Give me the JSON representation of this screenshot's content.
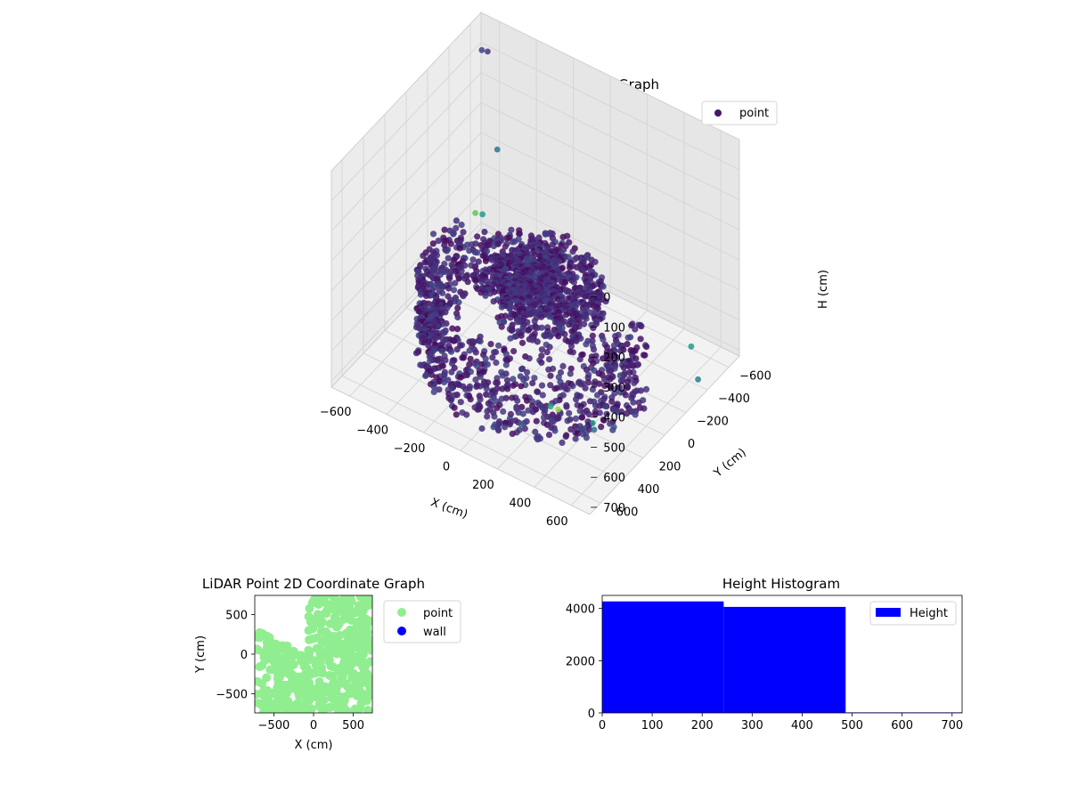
{
  "chart_data": [
    {
      "type": "scatter",
      "projection": "3d",
      "title": "LiDAR Point 3D Coordinate Graph",
      "xlabel": "X (cm)",
      "ylabel": "Y (cm)",
      "zlabel": "H (cm)",
      "xlim": [
        -700,
        700
      ],
      "ylim": [
        -700,
        700
      ],
      "zlim": [
        0,
        720
      ],
      "z_inverted": true,
      "xticks": [
        "−600",
        "−400",
        "−200",
        "0",
        "200",
        "400",
        "600"
      ],
      "yticks": [
        "−600",
        "−400",
        "−200",
        "0",
        "200",
        "400",
        "600"
      ],
      "zticks": [
        "0",
        "100",
        "200",
        "300",
        "400",
        "500",
        "600",
        "700"
      ],
      "grid": true,
      "colormap": "viridis",
      "color_by": "H (cm)",
      "legend_position": "top-right",
      "legend": [
        {
          "name": "point",
          "color": "#46176d"
        }
      ],
      "series": [
        {
          "name": "point",
          "groups": [
            {
              "shape": "arc",
              "r_range": [
                430,
                560
              ],
              "angle_range_deg": [
                -10,
                200
              ],
              "h_range": [
                430,
                700
              ],
              "note_value_h": 520
            },
            {
              "shape": "blob",
              "center": [
                200,
                200
              ],
              "r_range": [
                0,
                260
              ],
              "angle_range_deg": [
                0,
                360
              ],
              "h_range": [
                250,
                420
              ]
            },
            {
              "shape": "fan",
              "r_range": [
                150,
                450
              ],
              "angle_range_deg": [
                190,
                260
              ],
              "h_range": [
                450,
                620
              ]
            }
          ],
          "outliers": [
            {
              "x": -650,
              "y": -620,
              "h": 80
            },
            {
              "x": -560,
              "y": -610,
              "h": 380
            },
            {
              "x": -560,
              "y": -520,
              "h": 20
            },
            {
              "x": -650,
              "y": -560,
              "h": 600
            },
            {
              "x": -640,
              "y": -610,
              "h": 620
            },
            {
              "x": 560,
              "y": 430,
              "h": 560
            },
            {
              "x": 620,
              "y": 520,
              "h": 530
            },
            {
              "x": 430,
              "y": 600,
              "h": 480
            },
            {
              "x": 600,
              "y": 300,
              "h": 610
            },
            {
              "x": 650,
              "y": -400,
              "h": 700
            },
            {
              "x": 500,
              "y": 650,
              "h": 450
            },
            {
              "x": 300,
              "y": 650,
              "h": 560
            },
            {
              "x": 520,
              "y": -560,
              "h": 690
            }
          ]
        }
      ]
    },
    {
      "type": "scatter",
      "title": "LiDAR Point 2D Coordinate Graph",
      "xlabel": "X (cm)",
      "ylabel": "Y (cm)",
      "xlim": [
        -740,
        740
      ],
      "ylim": [
        -740,
        740
      ],
      "xticks": [
        "−500",
        "0",
        "500"
      ],
      "yticks": [
        "−500",
        "0",
        "500"
      ],
      "legend_position": "outside-right",
      "series": [
        {
          "name": "point",
          "color": "#90ee90",
          "region": "dense cloud filling most of the plot, empty notch upper-left"
        },
        {
          "name": "wall",
          "color": "#0000ff",
          "points": []
        }
      ]
    },
    {
      "type": "bar",
      "subtype": "histogram",
      "title": "Height Histogram",
      "xlabel": "",
      "ylabel": "",
      "xlim": [
        0,
        720
      ],
      "ylim": [
        0,
        4500
      ],
      "xticks": [
        "0",
        "100",
        "200",
        "300",
        "400",
        "500",
        "600",
        "700"
      ],
      "yticks": [
        "0",
        "2000",
        "4000"
      ],
      "legend_position": "top-right",
      "series": [
        {
          "name": "Height",
          "color": "#0000ff",
          "bins": [
            [
              0,
              243,
              4270
            ],
            [
              243,
              487,
              4060
            ],
            [
              487,
              730,
              20
            ]
          ]
        }
      ]
    }
  ]
}
